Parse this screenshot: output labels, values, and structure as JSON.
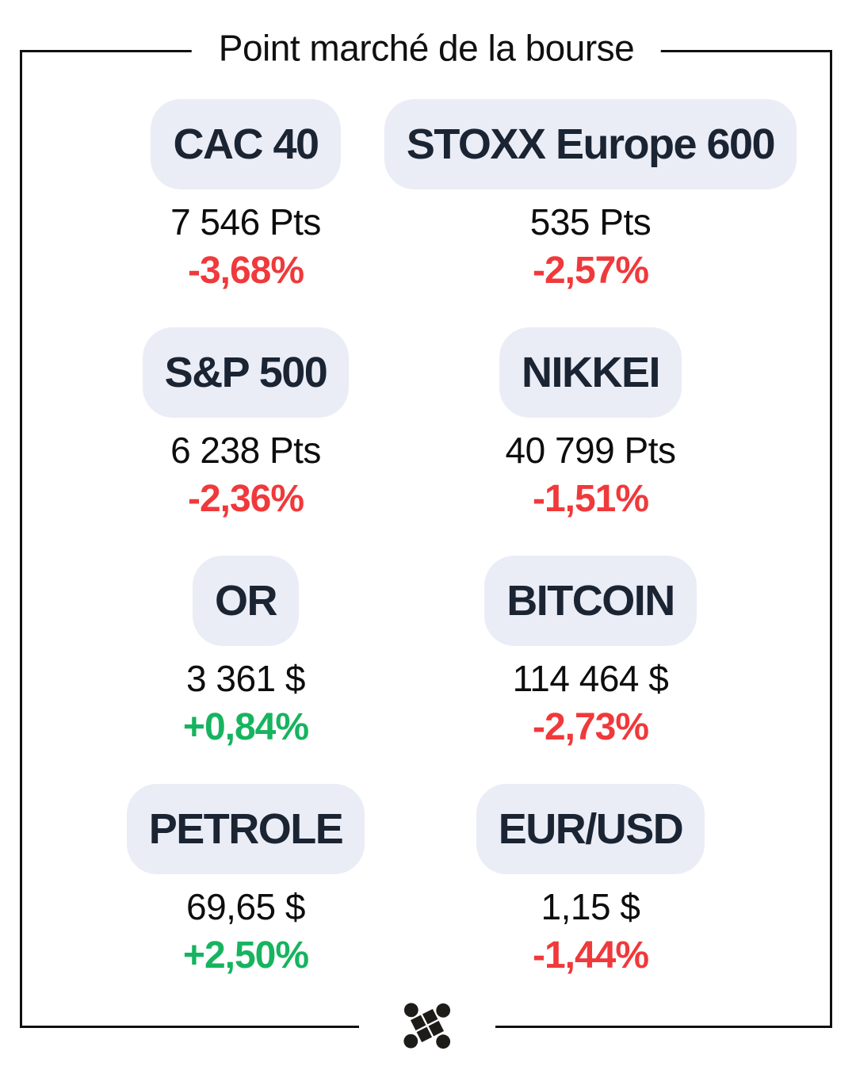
{
  "title": "Point marché de la bourse",
  "colors": {
    "negative": "#f0393b",
    "positive": "#16b45f",
    "pill_background": "#eaedf6",
    "pill_text": "#1b2433",
    "frame": "#101010"
  },
  "markets": [
    {
      "name": "CAC 40",
      "value": "7 546 Pts",
      "change": "-3,68%",
      "direction": "down"
    },
    {
      "name": "STOXX Europe 600",
      "value": "535 Pts",
      "change": "-2,57%",
      "direction": "down"
    },
    {
      "name": "S&P 500",
      "value": "6 238 Pts",
      "change": "-2,36%",
      "direction": "down"
    },
    {
      "name": "NIKKEI",
      "value": "40 799 Pts",
      "change": "-1,51%",
      "direction": "down"
    },
    {
      "name": "OR",
      "value": "3 361 $",
      "change": "+0,84%",
      "direction": "up"
    },
    {
      "name": "BITCOIN",
      "value": "114 464 $",
      "change": "-2,73%",
      "direction": "down"
    },
    {
      "name": "PETROLE",
      "value": "69,65 $",
      "change": "+2,50%",
      "direction": "up"
    },
    {
      "name": "EUR/USD",
      "value": "1,15 $",
      "change": "-1,44%",
      "direction": "down"
    }
  ],
  "footer": {
    "logo_icon": "brand-mark-icon"
  },
  "chart_data": {
    "type": "table",
    "title": "Point marché de la bourse",
    "columns": [
      "instrument",
      "value",
      "change_pct"
    ],
    "rows": [
      [
        "CAC 40",
        "7 546 Pts",
        -3.68
      ],
      [
        "STOXX Europe 600",
        "535 Pts",
        -2.57
      ],
      [
        "S&P 500",
        "6 238 Pts",
        -2.36
      ],
      [
        "NIKKEI",
        "40 799 Pts",
        -1.51
      ],
      [
        "OR",
        "3 361 $",
        0.84
      ],
      [
        "BITCOIN",
        "114 464 $",
        -2.73
      ],
      [
        "PETROLE",
        "69,65 $",
        2.5
      ],
      [
        "EUR/USD",
        "1,15 $",
        -1.44
      ]
    ],
    "legend_position": "none",
    "grid": false
  }
}
